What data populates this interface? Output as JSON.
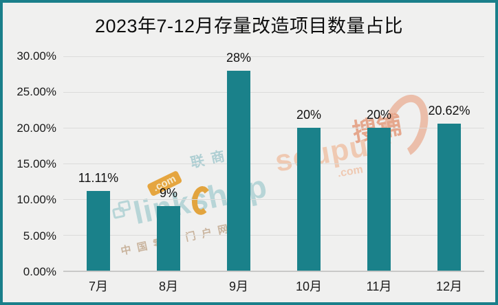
{
  "title": "2023年7-12月存量改造项目数量占比",
  "colors": {
    "bar": "#1A818A",
    "frame_border": "#1A7F8A",
    "background": "#F0F0EF",
    "gridline": "#DBDBDA",
    "baseline": "#C9C9C8",
    "title_text": "#0D0D0D",
    "axis_text": "#1A1A1A",
    "label_text": "#111111"
  },
  "chart_data": {
    "type": "bar",
    "title": "2023年7-12月存量改造项目数量占比",
    "categories": [
      "7月",
      "8月",
      "9月",
      "10月",
      "11月",
      "12月"
    ],
    "values": [
      11.11,
      9,
      28,
      20,
      20,
      20.62
    ],
    "value_labels": [
      "11.11%",
      "9%",
      "28%",
      "20%",
      "20%",
      "20.62%"
    ],
    "xlabel": "",
    "ylabel": "",
    "ylim": [
      0,
      30
    ],
    "yticks": [
      {
        "value": 0,
        "label": "0.00%"
      },
      {
        "value": 5,
        "label": "5.00%"
      },
      {
        "value": 10,
        "label": "10.00%"
      },
      {
        "value": 15,
        "label": "15.00%"
      },
      {
        "value": 20,
        "label": "20.00%"
      },
      {
        "value": 25,
        "label": "25.00%"
      },
      {
        "value": 30,
        "label": "30.00%"
      }
    ],
    "grid": true,
    "legend": false,
    "bar_color": "#1A818A"
  },
  "watermarks": {
    "linkshop": {
      "brand_cn": "联商网",
      "brand_main": "linkshop",
      "dot_com": ".com",
      "tagline": "中国零售门户网站"
    },
    "soupu": {
      "brand_main": "soupu",
      "dot_com": ".com",
      "brand_cn": "搜铺"
    }
  }
}
